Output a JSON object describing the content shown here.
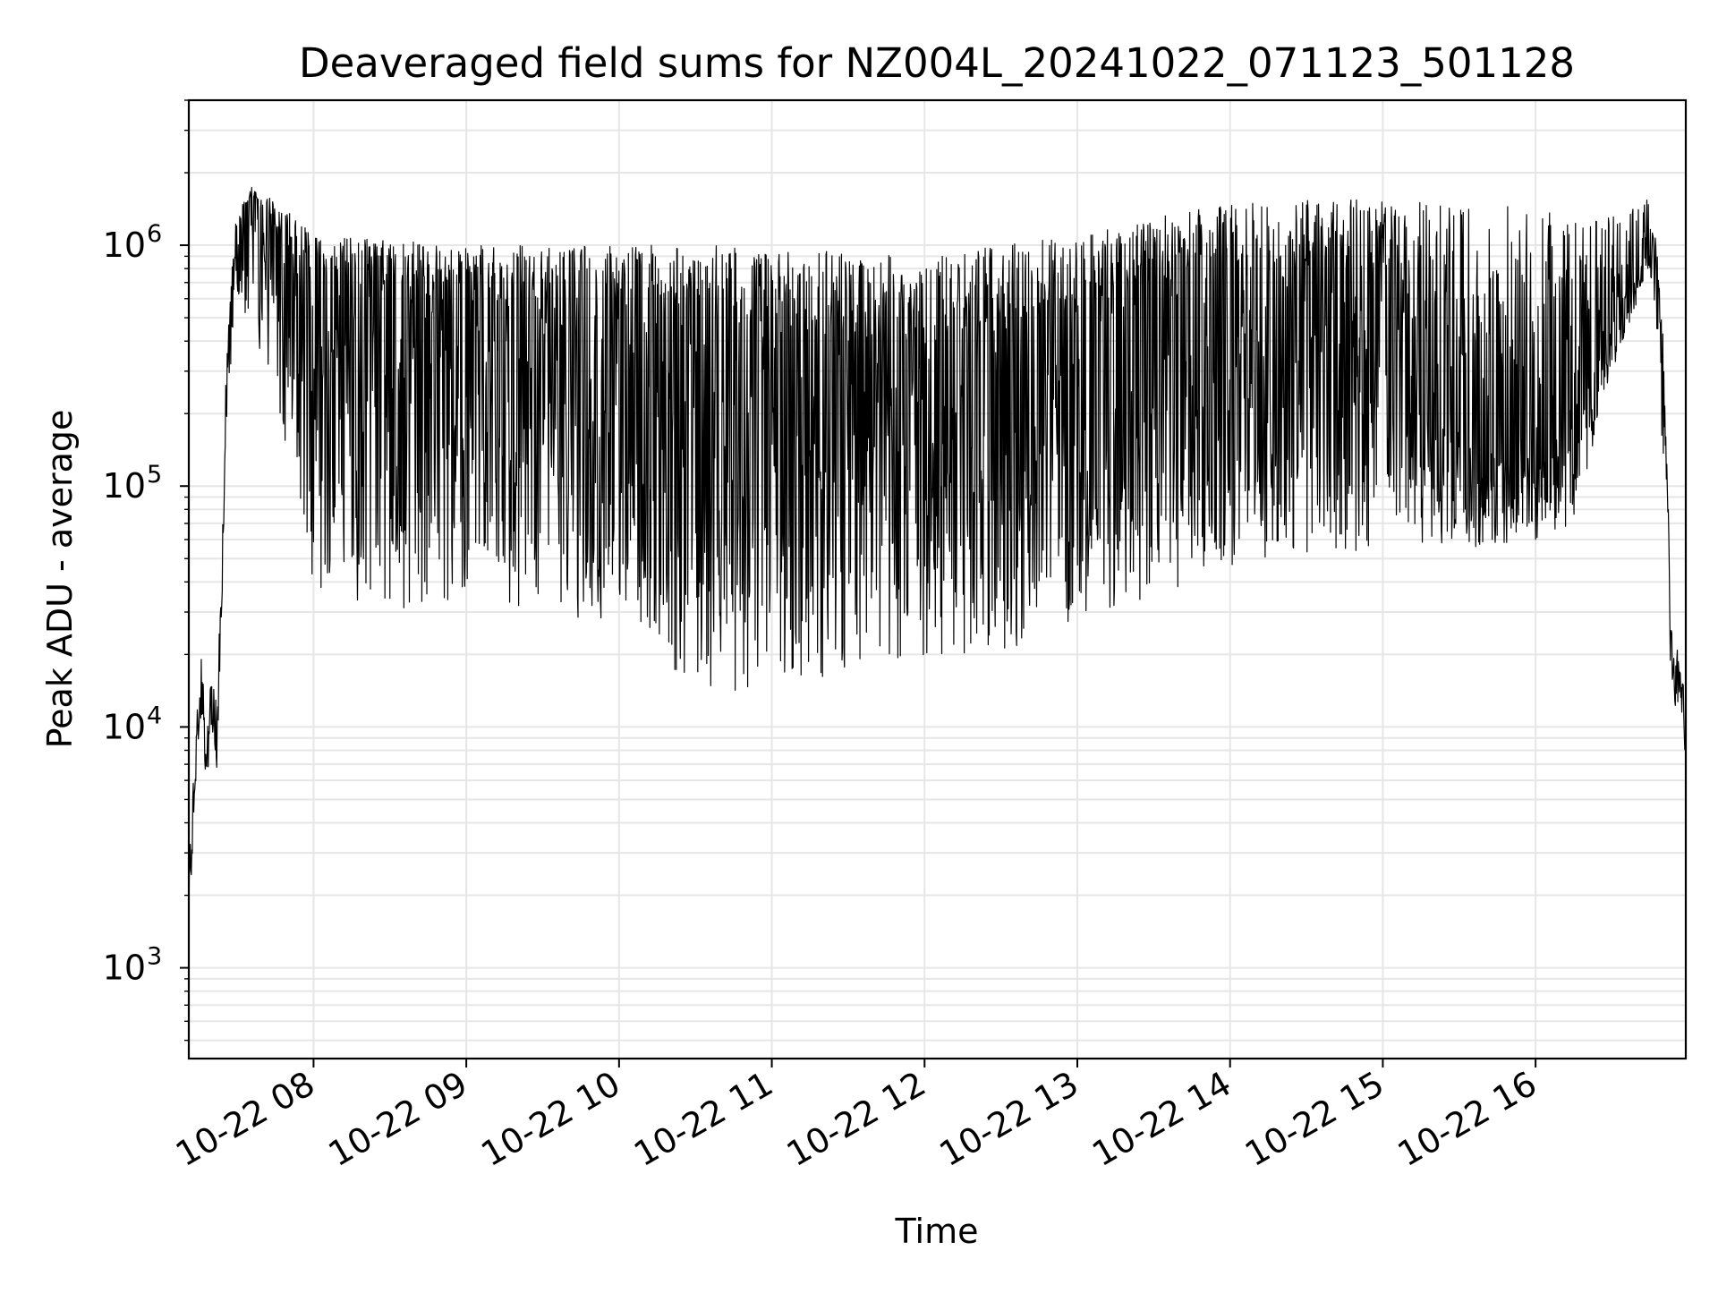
{
  "chart_data": {
    "type": "line",
    "title": "Deaveraged field sums for NZ004L_20241022_071123_501128",
    "xlabel": "Time",
    "ylabel": "Peak ADU - average",
    "x_start": "10-22 07:11",
    "x_end": "10-22 16:59",
    "xlim": [
      "10-22 07:11",
      "10-22 16:59"
    ],
    "ylim": [
      420,
      4000000
    ],
    "y_scale": "log",
    "grid": true,
    "line_color": "#000000",
    "x_ticks": [
      {
        "label": "10-22 08",
        "time": "10-22 08:00"
      },
      {
        "label": "10-22 09",
        "time": "10-22 09:00"
      },
      {
        "label": "10-22 10",
        "time": "10-22 10:00"
      },
      {
        "label": "10-22 11",
        "time": "10-22 11:00"
      },
      {
        "label": "10-22 12",
        "time": "10-22 12:00"
      },
      {
        "label": "10-22 13",
        "time": "10-22 13:00"
      },
      {
        "label": "10-22 14",
        "time": "10-22 14:00"
      },
      {
        "label": "10-22 15",
        "time": "10-22 15:00"
      },
      {
        "label": "10-22 16",
        "time": "10-22 16:00"
      }
    ],
    "y_ticks": [
      {
        "value": 1000,
        "base": "10",
        "exp": "3"
      },
      {
        "value": 10000,
        "base": "10",
        "exp": "4"
      },
      {
        "value": 100000,
        "base": "10",
        "exp": "5"
      },
      {
        "value": 1000000,
        "base": "10",
        "exp": "6"
      }
    ],
    "series": [
      {
        "points": [
          [
            "07:11",
            2000
          ],
          [
            "07:12",
            3000
          ],
          [
            "07:14",
            9000
          ],
          [
            "07:16",
            15000
          ],
          [
            "07:18",
            7000
          ],
          [
            "07:20",
            13000
          ],
          [
            "07:22",
            9000
          ],
          [
            "07:24",
            40000
          ],
          [
            "07:26",
            300000
          ],
          [
            "07:28",
            900000
          ],
          [
            "07:32",
            1200000
          ],
          [
            "07:36",
            1900000
          ],
          [
            "07:40",
            1300000
          ],
          [
            "07:45",
            1100000
          ],
          [
            "07:55",
            800000
          ],
          [
            "08:10",
            600000
          ],
          [
            "08:30",
            550000
          ],
          [
            "09:00",
            500000
          ],
          [
            "09:30",
            450000
          ],
          [
            "10:00",
            420000
          ],
          [
            "10:30",
            400000
          ],
          [
            "11:00",
            380000
          ],
          [
            "11:30",
            370000
          ],
          [
            "12:00",
            360000
          ],
          [
            "12:30",
            380000
          ],
          [
            "13:00",
            420000
          ],
          [
            "13:30",
            520000
          ],
          [
            "14:00",
            650000
          ],
          [
            "14:30",
            750000
          ],
          [
            "15:00",
            700000
          ],
          [
            "15:20",
            250000
          ],
          [
            "15:40",
            150000
          ],
          [
            "16:00",
            140000
          ],
          [
            "16:15",
            180000
          ],
          [
            "16:30",
            500000
          ],
          [
            "16:45",
            1000000
          ],
          [
            "16:47",
            1300000
          ],
          [
            "16:49",
            800000
          ],
          [
            "16:51",
            300000
          ],
          [
            "16:53",
            20000
          ],
          [
            "16:55",
            15000
          ],
          [
            "16:57",
            18000
          ],
          [
            "16:58",
            12000
          ],
          [
            "16:59",
            6000
          ]
        ],
        "min_envelope": [
          [
            "07:11",
            2000
          ],
          [
            "07:30",
            600000
          ],
          [
            "07:45",
            250000
          ],
          [
            "08:00",
            35000
          ],
          [
            "08:30",
            30000
          ],
          [
            "09:00",
            35000
          ],
          [
            "09:30",
            30000
          ],
          [
            "10:00",
            25000
          ],
          [
            "10:30",
            15000
          ],
          [
            "11:00",
            13000
          ],
          [
            "11:30",
            18000
          ],
          [
            "12:00",
            20000
          ],
          [
            "12:30",
            20000
          ],
          [
            "13:00",
            28000
          ],
          [
            "13:30",
            35000
          ],
          [
            "14:00",
            45000
          ],
          [
            "14:30",
            50000
          ],
          [
            "15:00",
            55000
          ],
          [
            "15:30",
            55000
          ],
          [
            "16:00",
            60000
          ],
          [
            "16:15",
            70000
          ],
          [
            "16:30",
            300000
          ],
          [
            "16:45",
            800000
          ],
          [
            "16:59",
            6000
          ]
        ],
        "max_envelope": [
          [
            "07:11",
            2000
          ],
          [
            "07:30",
            1500000
          ],
          [
            "07:45",
            1600000
          ],
          [
            "08:00",
            1100000
          ],
          [
            "08:30",
            1050000
          ],
          [
            "09:00",
            1000000
          ],
          [
            "09:30",
            1000000
          ],
          [
            "10:00",
            1000000
          ],
          [
            "10:30",
            1000000
          ],
          [
            "11:00",
            1000000
          ],
          [
            "11:30",
            950000
          ],
          [
            "12:00",
            900000
          ],
          [
            "12:30",
            1000000
          ],
          [
            "13:00",
            1100000
          ],
          [
            "13:30",
            1300000
          ],
          [
            "14:00",
            1500000
          ],
          [
            "14:30",
            1550000
          ],
          [
            "15:00",
            1550000
          ],
          [
            "15:30",
            1500000
          ],
          [
            "16:00",
            1450000
          ],
          [
            "16:15",
            1300000
          ],
          [
            "16:30",
            1300000
          ],
          [
            "16:45",
            1600000
          ],
          [
            "16:59",
            6000
          ]
        ]
      }
    ]
  }
}
